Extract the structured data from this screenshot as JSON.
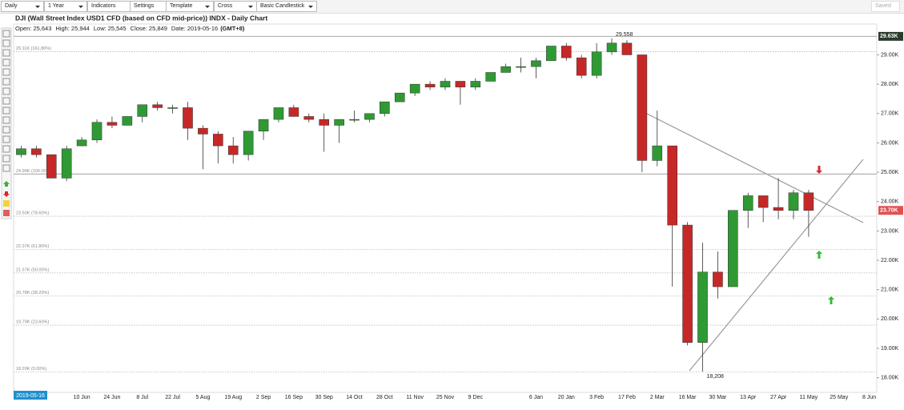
{
  "toolbar": {
    "period": "Daily",
    "range": "1 Year",
    "indicators": "Indicators",
    "settings": "Settings",
    "template": "Template",
    "cursor": "Cross",
    "style": "Basic Candlestick",
    "saved": "Saved"
  },
  "chart_data": {
    "type": "candlestick",
    "title": "DJI (Wall Street Index USD1 CFD (based on CFD mid-price)) INDX - Daily Chart",
    "info": [
      {
        "label": "Open:",
        "value": "25,643"
      },
      {
        "label": "High:",
        "value": "25,944"
      },
      {
        "label": "Low:",
        "value": "25,545"
      },
      {
        "label": "Close:",
        "value": "25,849"
      },
      {
        "label": "Date:",
        "value": "2019-05-16"
      }
    ],
    "timezone": "(GMT+8)",
    "categories": [
      null,
      null,
      null,
      null,
      "10 Jun",
      null,
      "24 Jun",
      null,
      "8 Jul",
      null,
      "22 Jul",
      null,
      "5 Aug",
      null,
      "19 Aug",
      null,
      "2 Sep",
      null,
      "16 Sep",
      null,
      "30 Sep",
      null,
      "14 Oct",
      null,
      "28 Oct",
      null,
      "11 Nov",
      null,
      "25 Nov",
      null,
      "9 Dec",
      null,
      null,
      null,
      "6 Jan",
      null,
      "20 Jan",
      null,
      "3 Feb",
      null,
      "17 Feb",
      null,
      "2 Mar",
      null,
      "16 Mar",
      null,
      "30 Mar",
      null,
      "13 Apr",
      null,
      "27 Apr",
      null,
      "11 May",
      null,
      "25 May",
      null,
      "8 Jun"
    ],
    "open": [
      25.6,
      25.8,
      25.6,
      24.8,
      25.9,
      26.1,
      26.7,
      26.6,
      26.9,
      27.3,
      27.2,
      27.2,
      26.5,
      26.3,
      25.9,
      25.6,
      26.4,
      26.8,
      27.2,
      26.9,
      26.8,
      26.6,
      26.8,
      26.8,
      27.0,
      27.4,
      27.7,
      28.0,
      27.9,
      28.1,
      27.9,
      28.1,
      28.4,
      28.6,
      28.6,
      28.8,
      29.3,
      28.9,
      28.3,
      29.1,
      29.4,
      29.0,
      25.4,
      25.9,
      23.2,
      19.2,
      21.6,
      21.1,
      23.7,
      24.2,
      23.8,
      23.7,
      24.3,
      null,
      null,
      null,
      null
    ],
    "high": [
      25.9,
      25.9,
      25.6,
      25.9,
      26.2,
      26.8,
      26.9,
      26.9,
      27.3,
      27.4,
      27.3,
      27.4,
      26.6,
      26.4,
      26.2,
      26.4,
      26.8,
      27.2,
      27.3,
      27.0,
      27.0,
      26.8,
      27.1,
      27.0,
      27.4,
      27.7,
      28.0,
      28.1,
      28.2,
      28.1,
      28.2,
      28.4,
      28.7,
      28.9,
      28.9,
      29.3,
      29.4,
      29.0,
      29.4,
      29.558,
      29.5,
      29.0,
      27.1,
      25.9,
      23.3,
      22.6,
      22.3,
      23.7,
      24.3,
      24.2,
      24.8,
      24.4,
      24.4,
      null,
      null,
      null,
      null
    ],
    "low": [
      25.5,
      25.5,
      24.8,
      24.7,
      25.9,
      26.0,
      26.5,
      26.6,
      26.7,
      27.1,
      27.0,
      26.1,
      25.1,
      25.3,
      25.3,
      25.4,
      26.1,
      26.7,
      26.9,
      26.7,
      25.7,
      26.0,
      26.7,
      26.7,
      26.9,
      27.4,
      27.6,
      27.8,
      27.8,
      27.3,
      27.8,
      28.1,
      28.4,
      28.4,
      28.2,
      28.8,
      28.8,
      28.2,
      28.2,
      29.0,
      29.0,
      25.0,
      25.2,
      21.1,
      19.1,
      18.208,
      20.7,
      21.1,
      23.1,
      23.3,
      23.4,
      23.4,
      22.8,
      null,
      null,
      null,
      null
    ],
    "close": [
      25.8,
      25.6,
      24.8,
      25.8,
      26.1,
      26.7,
      26.6,
      26.9,
      27.3,
      27.2,
      27.2,
      26.5,
      26.3,
      25.9,
      25.6,
      26.4,
      26.8,
      27.2,
      26.9,
      26.8,
      26.6,
      26.8,
      26.8,
      27.0,
      27.4,
      27.7,
      28.0,
      27.9,
      28.1,
      27.9,
      28.1,
      28.4,
      28.6,
      28.6,
      28.8,
      29.3,
      28.9,
      28.3,
      29.1,
      29.4,
      29.0,
      25.4,
      25.9,
      23.2,
      19.2,
      21.6,
      21.1,
      23.7,
      24.2,
      23.8,
      23.7,
      24.3,
      23.7,
      null,
      null,
      null,
      null
    ],
    "up_color": "#2f9a33",
    "down_color": "#c62828",
    "ylim": [
      17.5,
      30.05
    ],
    "yticks": [
      {
        "value": 18,
        "label": "18.00K"
      },
      {
        "value": 19,
        "label": "19.00K"
      },
      {
        "value": 20,
        "label": "20.00K"
      },
      {
        "value": 21,
        "label": "21.00K"
      },
      {
        "value": 22,
        "label": "22.00K"
      },
      {
        "value": 23,
        "label": "23.00K"
      },
      {
        "value": 24,
        "label": "24.00K"
      },
      {
        "value": 25,
        "label": "25.00K"
      },
      {
        "value": 26,
        "label": "26.00K"
      },
      {
        "value": 27,
        "label": "27.00K"
      },
      {
        "value": 28,
        "label": "28.00K"
      },
      {
        "value": 29,
        "label": "29.00K"
      }
    ],
    "fib_levels": [
      {
        "value": 29.11,
        "label": "29.11K (161.80%)",
        "solid": false
      },
      {
        "value": 24.94,
        "label": "24.94K (100.00%)",
        "solid": true
      },
      {
        "value": 23.5,
        "label": "23.50K (78.60%)",
        "solid": false
      },
      {
        "value": 22.37,
        "label": "22.37K (61.80%)",
        "solid": false
      },
      {
        "value": 21.57,
        "label": "21.57K (50.00%)",
        "solid": false
      },
      {
        "value": 20.78,
        "label": "20.78K (38.20%)",
        "solid": false
      },
      {
        "value": 19.79,
        "label": "19.79K (23.60%)",
        "solid": false
      },
      {
        "value": 18.2,
        "label": "18.20K (0.00%)",
        "solid": false
      }
    ],
    "price_markers": [
      {
        "value": 29.63,
        "label": "29.63K",
        "color": "#2d3b2d"
      },
      {
        "value": 23.7,
        "label": "23.70K",
        "color": "#e05252"
      }
    ],
    "annotations": [
      {
        "index": 39,
        "value": 29.558,
        "label": "29,558"
      },
      {
        "index": 45,
        "value": 18.208,
        "label": "18,208"
      }
    ]
  }
}
